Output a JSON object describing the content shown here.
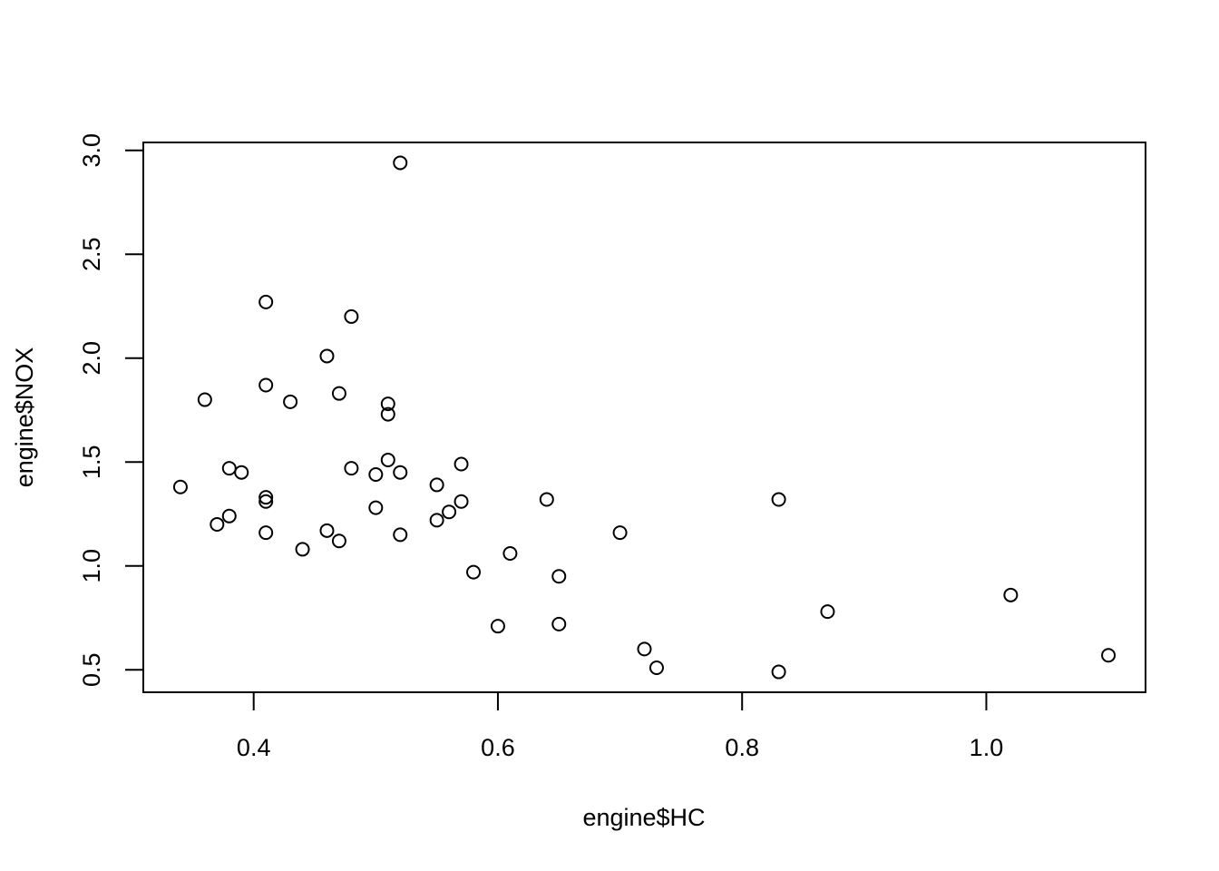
{
  "chart_data": {
    "type": "scatter",
    "x_label": "engine$HC",
    "y_label": "engine$NOX",
    "x": [
      0.52,
      0.41,
      0.48,
      0.46,
      0.41,
      0.47,
      0.36,
      0.43,
      0.51,
      0.51,
      0.38,
      0.48,
      0.39,
      0.52,
      0.5,
      0.51,
      0.57,
      0.55,
      0.34,
      0.41,
      0.41,
      0.57,
      0.64,
      0.83,
      0.5,
      0.56,
      0.38,
      0.55,
      0.37,
      0.46,
      0.41,
      0.7,
      0.52,
      0.47,
      0.44,
      0.61,
      0.58,
      0.65,
      1.02,
      0.87,
      0.65,
      0.6,
      0.72,
      1.1,
      0.73,
      0.83
    ],
    "values": [
      2.94,
      2.27,
      2.2,
      2.01,
      1.87,
      1.83,
      1.8,
      1.79,
      1.78,
      1.73,
      1.47,
      1.47,
      1.45,
      1.45,
      1.44,
      1.51,
      1.49,
      1.39,
      1.38,
      1.33,
      1.31,
      1.31,
      1.32,
      1.32,
      1.28,
      1.26,
      1.24,
      1.22,
      1.2,
      1.17,
      1.16,
      1.16,
      1.15,
      1.12,
      1.08,
      1.06,
      0.97,
      0.95,
      0.86,
      0.78,
      0.72,
      0.71,
      0.6,
      0.57,
      0.51,
      0.49
    ],
    "color": "#000000",
    "xlim": [
      0.3096,
      1.1304
    ],
    "xticks": [
      0.4,
      0.6,
      0.8,
      {
        "value": 1,
        "label": "1.0"
      }
    ],
    "ylim": [
      0.392,
      3.038
    ],
    "yticks": [
      0.5,
      {
        "value": 1,
        "label": "1.0"
      },
      1.5,
      {
        "value": 2,
        "label": "2.0"
      },
      2.5,
      {
        "value": 3,
        "label": "3.0"
      }
    ]
  }
}
